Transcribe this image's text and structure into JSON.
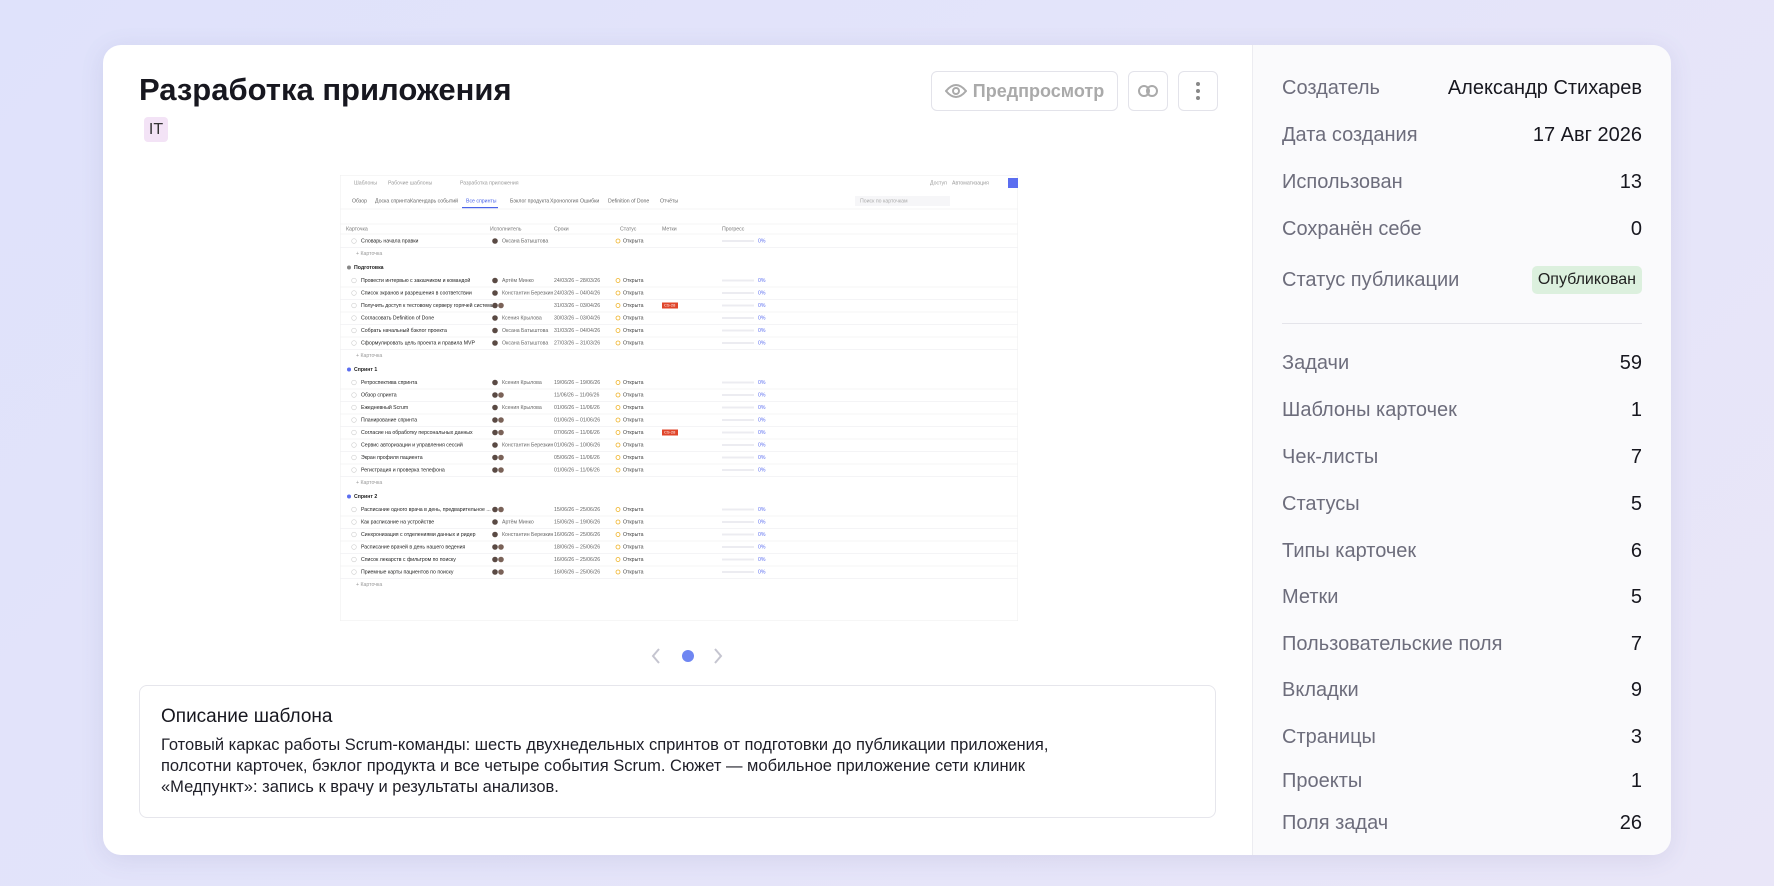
{
  "header": {
    "title": "Разработка приложения",
    "tag": "IT",
    "preview_button": "Предпросмотр"
  },
  "thumbnail": {
    "breadcrumbs": [
      "Шаблоны",
      "Рабочие шаблоны",
      "Разработка приложения"
    ],
    "top_actions": [
      "Доступ",
      "Автоматизация"
    ],
    "tabs": [
      "Обзор",
      "Доска спринта",
      "Календарь событий",
      "Все спринты",
      "Бэклог продукта",
      "Хронология",
      "Ошибки",
      "Definition of Done",
      "Отчёты"
    ],
    "search": "Поиск по карточкам",
    "columns": [
      "Карточка",
      "Исполнитель",
      "Сроки",
      "Статус",
      "Метки",
      "Прогресс"
    ],
    "add_card": "+ Карточка",
    "groups": [
      {
        "rows": [
          {
            "title": "Словарь начала правки",
            "assignee": "Оксана Батыштова",
            "status": "Открыта",
            "progress": "0%"
          }
        ]
      },
      {
        "name": "Подготовка",
        "rows": [
          {
            "title": "Провести интервью с заказчиком и командой",
            "assignee": "Артём Минко",
            "dates": "24/03/26 – 28/03/26",
            "status": "Открыта",
            "progress": "0%"
          },
          {
            "title": "Список экранов и разрешения в соответствии",
            "assignee": "Константин Березкин",
            "dates": "24/03/26 – 04/04/26",
            "status": "Открыта",
            "progress": "0%"
          },
          {
            "title": "Получить доступ к тестовому серверу горячей системы",
            "dates": "31/03/26 – 03/04/26",
            "status": "Открыта",
            "tag": "CS-28",
            "progress": "0%"
          },
          {
            "title": "Согласовать Definition of Done",
            "assignee": "Ксения Крылова",
            "dates": "30/03/26 – 03/04/26",
            "status": "Открыта",
            "progress": "0%"
          },
          {
            "title": "Собрать начальный бэклог проекта",
            "assignee": "Оксана Батыштова",
            "dates": "31/03/26 – 04/04/26",
            "status": "Открыта",
            "progress": "0%"
          },
          {
            "title": "Сформулировать цель проекта и правила MVP",
            "assignee": "Оксана Батыштова",
            "dates": "27/03/26 – 31/03/26",
            "status": "Открыта",
            "progress": "0%"
          }
        ]
      },
      {
        "name": "Спринт 1",
        "rows": [
          {
            "title": "Ретроспектива спринта",
            "assignee": "Ксения Крылова",
            "dates": "19/06/26 – 19/06/26",
            "status": "Открыта",
            "progress": "0%"
          },
          {
            "title": "Обзор спринта",
            "dates": "11/06/26 – 11/06/26",
            "status": "Открыта",
            "progress": "0%"
          },
          {
            "title": "Ежедневный Scrum",
            "assignee": "Ксения Крылова",
            "dates": "01/06/26 – 11/06/26",
            "status": "Открыта",
            "progress": "0%"
          },
          {
            "title": "Планирование спринта",
            "dates": "01/06/26 – 01/06/26",
            "status": "Открыта",
            "progress": "0%"
          },
          {
            "title": "Согласие на обработку персональных данных",
            "dates": "07/06/26 – 11/06/26",
            "status": "Открыта",
            "tag": "CS-28",
            "progress": "0%"
          },
          {
            "title": "Сервис авторизации и управления сессий",
            "assignee": "Константин Березкин",
            "dates": "01/06/26 – 10/06/26",
            "status": "Открыта",
            "progress": "0%"
          },
          {
            "title": "Экран профиля пациента",
            "dates": "05/06/26 – 11/06/26",
            "status": "Открыта",
            "progress": "0%"
          },
          {
            "title": "Регистрация и проверка телефона",
            "dates": "01/06/26 – 11/06/26",
            "status": "Открыта",
            "progress": "0%"
          }
        ]
      },
      {
        "name": "Спринт 2",
        "rows": [
          {
            "title": "Расписание одного врача в день, предварительное ...",
            "dates": "15/06/26 – 25/06/26",
            "status": "Открыта",
            "progress": "0%"
          },
          {
            "title": "Как расписание на устройстве",
            "assignee": "Артём Минко",
            "dates": "15/06/26 – 19/06/26",
            "status": "Открыта",
            "progress": "0%"
          },
          {
            "title": "Синхронизация с отделениями данных и ридер",
            "assignee": "Константин Березкин",
            "dates": "16/06/26 – 25/06/26",
            "status": "Открыта",
            "progress": "0%"
          },
          {
            "title": "Расписание врачей в день нашего ведения",
            "dates": "18/06/26 – 25/06/26",
            "status": "Открыта",
            "progress": "0%"
          },
          {
            "title": "Список лекарств с фильтром по поиску",
            "dates": "16/06/26 – 25/06/26",
            "status": "Открыта",
            "progress": "0%"
          },
          {
            "title": "Приемные карты пациентов по поиску",
            "dates": "16/06/26 – 25/06/26",
            "status": "Открыта",
            "progress": "0%"
          }
        ]
      }
    ]
  },
  "description": {
    "title": "Описание шаблона",
    "lines": [
      "Готовый каркас работы Scrum-команды: шесть двухнедельных спринтов от подготовки до публикации приложения,",
      "полсотни карточек, бэклог продукта и все четыре события Scrum. Сюжет — мобильное приложение сети клиник",
      "«Медпункт»: запись к врачу и результаты анализов."
    ]
  },
  "info": [
    [
      "Создатель",
      "Александр Стихарев"
    ],
    [
      "Дата создания",
      "17 Авг 2026"
    ],
    [
      "Использован",
      "13"
    ],
    [
      "Сохранён себе",
      "0"
    ]
  ],
  "publication": [
    "Статус публикации",
    "Опубликован"
  ],
  "stats": [
    [
      "Задачи",
      "59"
    ],
    [
      "Шаблоны карточек",
      "1"
    ],
    [
      "Чек-листы",
      "7"
    ],
    [
      "Статусы",
      "5"
    ],
    [
      "Типы карточек",
      "6"
    ],
    [
      "Метки",
      "5"
    ],
    [
      "Пользовательские поля",
      "7"
    ],
    [
      "Вкладки",
      "9"
    ],
    [
      "Страницы",
      "3"
    ],
    [
      "Проекты",
      "1"
    ],
    [
      "Поля задач",
      "26"
    ]
  ]
}
